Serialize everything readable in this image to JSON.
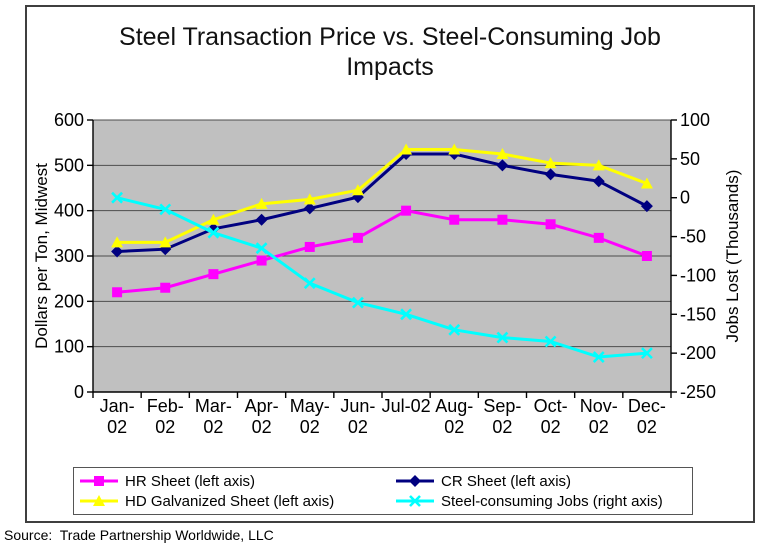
{
  "source_note": "Source:  Trade Partnership Worldwide, LLC",
  "chart_data": {
    "type": "line",
    "title": "Steel Transaction Price vs. Steel-Consuming Job Impacts",
    "title_lines": [
      "Steel Transaction Price vs. Steel-Consuming Job",
      "Impacts"
    ],
    "categories": [
      "Jan-02",
      "Feb-02",
      "Mar-02",
      "Apr-02",
      "May-02",
      "Jun-02",
      "Jul-02",
      "Aug-02",
      "Sep-02",
      "Oct-02",
      "Nov-02",
      "Dec-02"
    ],
    "x_tick_labels": [
      [
        "Jan-",
        "02"
      ],
      [
        "Feb-",
        "02"
      ],
      [
        "Mar-",
        "02"
      ],
      [
        "Apr-",
        "02"
      ],
      [
        "May-",
        "02"
      ],
      [
        "Jun-",
        "02"
      ],
      [
        "Jul-02"
      ],
      [
        "Aug-",
        "02"
      ],
      [
        "Sep-",
        "02"
      ],
      [
        "Oct-",
        "02"
      ],
      [
        "Nov-",
        "02"
      ],
      [
        "Dec-",
        "02"
      ]
    ],
    "left_axis": {
      "label": "Dollars per Ton, Midwest",
      "min": 0,
      "max": 600,
      "step": 100,
      "ticks": [
        0,
        100,
        200,
        300,
        400,
        500,
        600
      ]
    },
    "right_axis": {
      "label": "Jobs Lost (Thousands)",
      "min": -250,
      "max": 100,
      "step": 50,
      "ticks": [
        100,
        50,
        0,
        -50,
        -100,
        -150,
        -200,
        -250
      ]
    },
    "series": [
      {
        "name": "HR Sheet (left axis)",
        "axis": "left",
        "color": "#FF00FF",
        "marker": "square",
        "values": [
          220,
          230,
          260,
          290,
          320,
          340,
          400,
          380,
          380,
          370,
          340,
          300
        ]
      },
      {
        "name": "CR Sheet (left axis)",
        "axis": "left",
        "color": "#000080",
        "marker": "diamond",
        "values": [
          310,
          315,
          360,
          380,
          405,
          430,
          525,
          525,
          500,
          480,
          465,
          410
        ]
      },
      {
        "name": "HD Galvanized Sheet (left axis)",
        "axis": "left",
        "color": "#FFFF00",
        "marker": "triangle",
        "values": [
          330,
          330,
          380,
          415,
          425,
          445,
          535,
          535,
          525,
          505,
          500,
          460
        ]
      },
      {
        "name": "Steel-consuming Jobs (right axis)",
        "axis": "right",
        "color": "#00FFFF",
        "marker": "x",
        "values": [
          0,
          -15,
          -45,
          -65,
          -110,
          -135,
          -150,
          -170,
          -180,
          -185,
          -205,
          -200
        ]
      }
    ],
    "plot_bg_color": "#C0C0C0",
    "gridline_color": "#4D4D4D",
    "axis_color": "#000000",
    "grid": true,
    "legend_position": "bottom"
  }
}
